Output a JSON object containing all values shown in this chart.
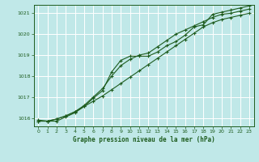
{
  "xlabel": "Graphe pression niveau de la mer (hPa)",
  "xlim": [
    -0.5,
    23.5
  ],
  "ylim": [
    1015.6,
    1021.4
  ],
  "yticks": [
    1016,
    1017,
    1018,
    1019,
    1020,
    1021
  ],
  "xticks": [
    0,
    1,
    2,
    3,
    4,
    5,
    6,
    7,
    8,
    9,
    10,
    11,
    12,
    13,
    14,
    15,
    16,
    17,
    18,
    19,
    20,
    21,
    22,
    23
  ],
  "bg_color": "#c0e8e8",
  "grid_color": "#ffffff",
  "line_color": "#1e5c1e",
  "line1_x": [
    0,
    1,
    2,
    3,
    4,
    5,
    6,
    7,
    8,
    9,
    10,
    11,
    12,
    13,
    14,
    15,
    16,
    17,
    18,
    19,
    20,
    21,
    22,
    23
  ],
  "line1_y": [
    1015.9,
    1015.85,
    1015.85,
    1016.05,
    1016.25,
    1016.55,
    1016.95,
    1017.3,
    1018.2,
    1018.75,
    1018.95,
    1018.95,
    1018.95,
    1019.15,
    1019.45,
    1019.65,
    1019.95,
    1020.35,
    1020.45,
    1020.95,
    1021.05,
    1021.15,
    1021.25,
    1021.35
  ],
  "line2_x": [
    0,
    1,
    2,
    3,
    4,
    5,
    6,
    7,
    8,
    9,
    10,
    11,
    12,
    13,
    14,
    15,
    16,
    17,
    18,
    19,
    20,
    21,
    22,
    23
  ],
  "line2_y": [
    1015.85,
    1015.85,
    1015.95,
    1016.1,
    1016.3,
    1016.6,
    1017.0,
    1017.4,
    1018.0,
    1018.5,
    1018.8,
    1019.0,
    1019.1,
    1019.4,
    1019.7,
    1020.0,
    1020.2,
    1020.4,
    1020.6,
    1020.8,
    1020.95,
    1021.0,
    1021.1,
    1021.2
  ],
  "line3_x": [
    0,
    1,
    2,
    3,
    4,
    5,
    6,
    7,
    8,
    9,
    10,
    11,
    12,
    13,
    14,
    15,
    16,
    17,
    18,
    19,
    20,
    21,
    22,
    23
  ],
  "line3_y": [
    1015.85,
    1015.85,
    1015.95,
    1016.1,
    1016.3,
    1016.55,
    1016.8,
    1017.05,
    1017.35,
    1017.65,
    1017.95,
    1018.25,
    1018.55,
    1018.85,
    1019.15,
    1019.45,
    1019.75,
    1020.05,
    1020.35,
    1020.55,
    1020.7,
    1020.8,
    1020.9,
    1021.0
  ]
}
